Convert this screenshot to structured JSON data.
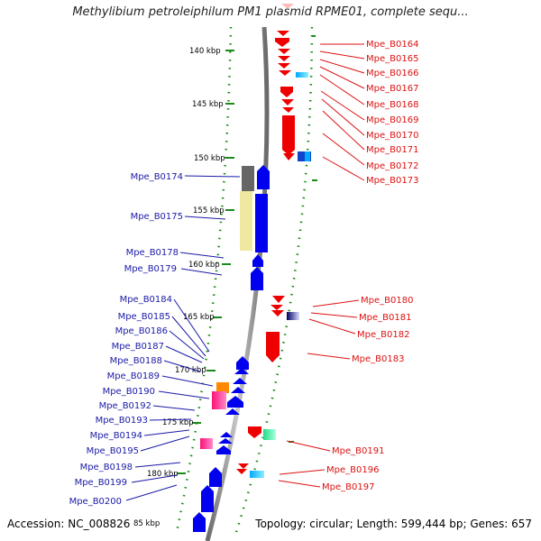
{
  "title": "Methylibium petroleiphilum PM1 plasmid RPME01, complete sequ...",
  "accession": "Accession: NC_008826",
  "topology": "Topology: circular; Length: 599,444 bp; Genes: 657",
  "scale_labels": [
    "140 kbp",
    "145 kbp",
    "150 kbp",
    "155 kbp",
    "160 kbp",
    "165 kbp",
    "170 kbp",
    "175 kbp",
    "180 kbp",
    "85 kbp"
  ],
  "right_genes": [
    "Mpe_B0164",
    "Mpe_B0165",
    "Mpe_B0166",
    "Mpe_B0167",
    "Mpe_B0168",
    "Mpe_B0169",
    "Mpe_B0170",
    "Mpe_B0171",
    "Mpe_B0172",
    "Mpe_B0173",
    "Mpe_B0180",
    "Mpe_B0181",
    "Mpe_B0182",
    "Mpe_B0183",
    "Mpe_B0191",
    "Mpe_B0196",
    "Mpe_B0197"
  ],
  "left_genes": [
    "Mpe_B0174",
    "Mpe_B0175",
    "Mpe_B0178",
    "Mpe_B0179",
    "Mpe_B0184",
    "Mpe_B0185",
    "Mpe_B0186",
    "Mpe_B0187",
    "Mpe_B0188",
    "Mpe_B0189",
    "Mpe_B0190",
    "Mpe_B0192",
    "Mpe_B0193",
    "Mpe_B0194",
    "Mpe_B0195",
    "Mpe_B0198",
    "Mpe_B0199",
    "Mpe_B0200"
  ],
  "colors": {
    "forward_strand": "#0000ee",
    "reverse_strand": "#ee0000",
    "label_left": "#1a1aa8",
    "label_right": "#dd1111",
    "backbone": "#888888",
    "tick": "#1a8a1a"
  }
}
